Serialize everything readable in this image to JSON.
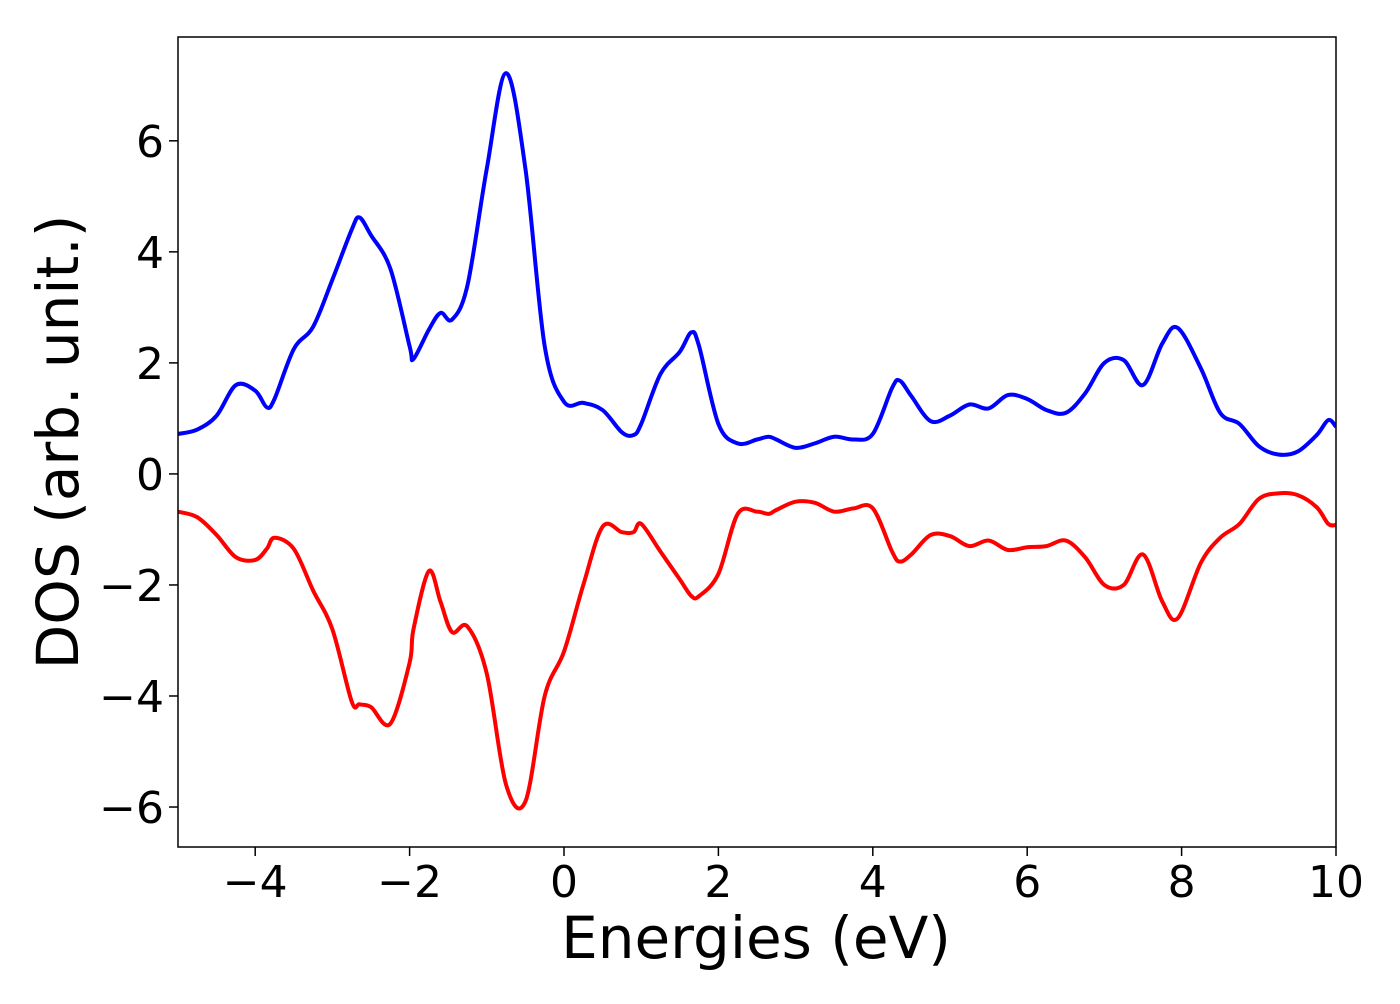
{
  "chart_data": {
    "type": "line",
    "x_label": "Energies (eV)",
    "y_label": "DOS (arb. unit.)",
    "x": [
      -5,
      -4.75,
      -4.5,
      -4.25,
      -4,
      -3.85,
      -3.75,
      -3.5,
      -3.25,
      -3,
      -2.75,
      -2.65,
      -2.5,
      -2.25,
      -2,
      -1.95,
      -1.75,
      -1.6,
      -1.45,
      -1.25,
      -1,
      -0.75,
      -0.5,
      -0.25,
      0,
      0.25,
      0.5,
      0.75,
      0.9,
      1,
      1.25,
      1.5,
      1.65,
      1.75,
      2,
      2.25,
      2.5,
      2.65,
      2.75,
      3,
      3.25,
      3.5,
      3.75,
      4,
      4.25,
      4.35,
      4.5,
      4.75,
      5,
      5.25,
      5.5,
      5.75,
      6,
      6.25,
      6.5,
      6.75,
      7,
      7.25,
      7.5,
      7.75,
      7.95,
      8.25,
      8.5,
      8.75,
      9,
      9.25,
      9.5,
      9.75,
      9.9,
      10
    ],
    "series": [
      {
        "color": "#0000ff",
        "values": [
          0.72,
          0.8,
          1.05,
          1.6,
          1.5,
          1.2,
          1.35,
          2.25,
          2.65,
          3.5,
          4.4,
          4.62,
          4.3,
          3.7,
          2.3,
          2.07,
          2.6,
          2.9,
          2.78,
          3.4,
          5.5,
          7.22,
          5.5,
          2.3,
          1.3,
          1.28,
          1.15,
          0.75,
          0.7,
          0.9,
          1.8,
          2.2,
          2.55,
          2.3,
          0.9,
          0.55,
          0.62,
          0.67,
          0.62,
          0.47,
          0.55,
          0.67,
          0.62,
          0.72,
          1.55,
          1.68,
          1.4,
          0.95,
          1.05,
          1.25,
          1.18,
          1.42,
          1.35,
          1.15,
          1.1,
          1.45,
          2.0,
          2.05,
          1.6,
          2.35,
          2.63,
          1.9,
          1.1,
          0.9,
          0.5,
          0.35,
          0.4,
          0.7,
          0.97,
          0.85
        ]
      },
      {
        "color": "#ff0000",
        "values": [
          -0.68,
          -0.78,
          -1.1,
          -1.5,
          -1.55,
          -1.35,
          -1.15,
          -1.35,
          -2.1,
          -2.8,
          -4.1,
          -4.15,
          -4.2,
          -4.5,
          -3.4,
          -2.8,
          -1.75,
          -2.3,
          -2.85,
          -2.75,
          -3.6,
          -5.6,
          -5.9,
          -4.0,
          -3.2,
          -2.0,
          -0.95,
          -1.05,
          -1.05,
          -0.9,
          -1.4,
          -1.9,
          -2.2,
          -2.2,
          -1.8,
          -0.72,
          -0.68,
          -0.72,
          -0.65,
          -0.5,
          -0.52,
          -0.68,
          -0.62,
          -0.62,
          -1.4,
          -1.58,
          -1.45,
          -1.1,
          -1.12,
          -1.3,
          -1.2,
          -1.37,
          -1.32,
          -1.3,
          -1.2,
          -1.5,
          -2.0,
          -2.0,
          -1.45,
          -2.3,
          -2.6,
          -1.6,
          -1.15,
          -0.9,
          -0.45,
          -0.35,
          -0.38,
          -0.6,
          -0.9,
          -0.92
        ]
      }
    ],
    "xlim": [
      -5,
      10
    ],
    "ylim": [
      -6.72,
      7.87
    ],
    "xticks": [
      {
        "value": -4,
        "label": "−4"
      },
      {
        "value": -2,
        "label": "−2"
      },
      0,
      2,
      4,
      6,
      8,
      10
    ],
    "yticks": [
      {
        "value": -6,
        "label": "−6"
      },
      {
        "value": -4,
        "label": "−4"
      },
      {
        "value": -2,
        "label": "−2"
      },
      0,
      2,
      4,
      6
    ],
    "grid": false
  }
}
